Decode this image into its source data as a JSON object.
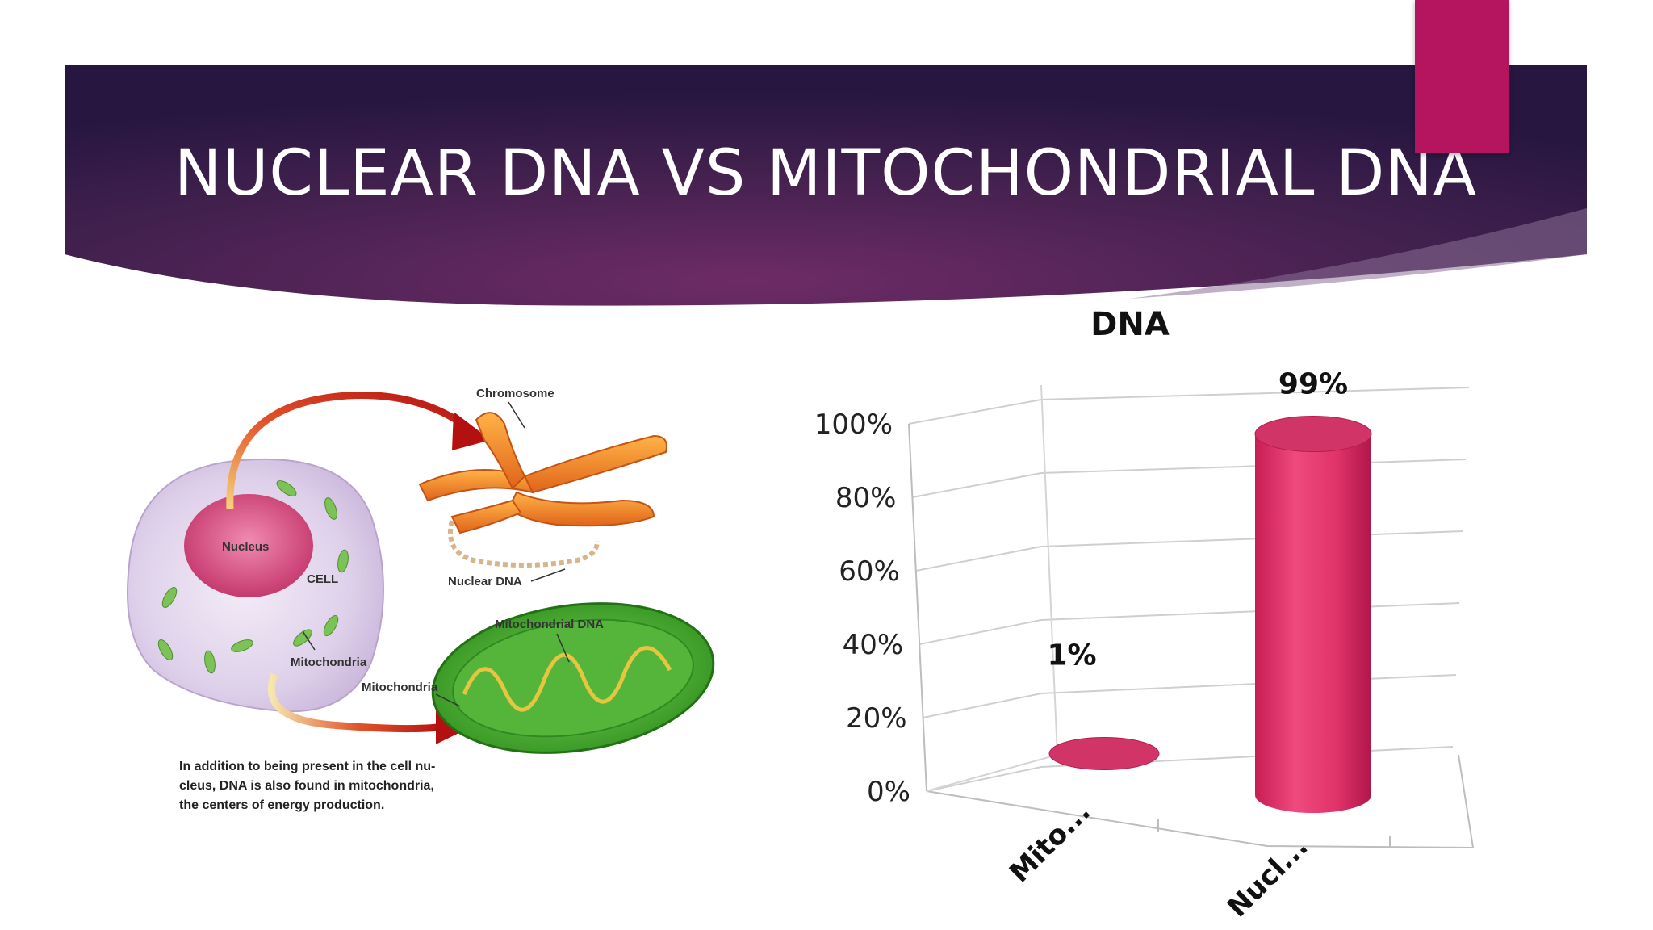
{
  "slide": {
    "title": "NUCLEAR DNA VS MITOCHONDRIAL DNA",
    "colors": {
      "banner_dark": "#2b1844",
      "banner_mid": "#5e2a63",
      "accent": "#b5145e",
      "bar": "#e0336a"
    }
  },
  "illustration": {
    "labels": {
      "chromosome": "Chromosome",
      "nucleus": "Nucleus",
      "cell": "CELL",
      "nuclear_dna": "Nuclear DNA",
      "mitochondrial_dna": "Mitochondrial DNA",
      "mitochondria_1": "Mitochondria",
      "mitochondria_2": "Mitochondria"
    },
    "caption_lines": [
      "In addition to being present in the cell nu-",
      "cleus, DNA is also found in mitochondria,",
      "the centers of energy production."
    ]
  },
  "chart_data": {
    "type": "bar",
    "title": "DNA",
    "categories": [
      "Mito...",
      "Nucl..."
    ],
    "values": [
      1,
      99
    ],
    "data_labels": [
      "1%",
      "99%"
    ],
    "y_ticks": [
      "0%",
      "20%",
      "40%",
      "60%",
      "80%",
      "100%"
    ],
    "ylim": [
      0,
      100
    ],
    "grid": true,
    "style": "3d-cylinder"
  }
}
